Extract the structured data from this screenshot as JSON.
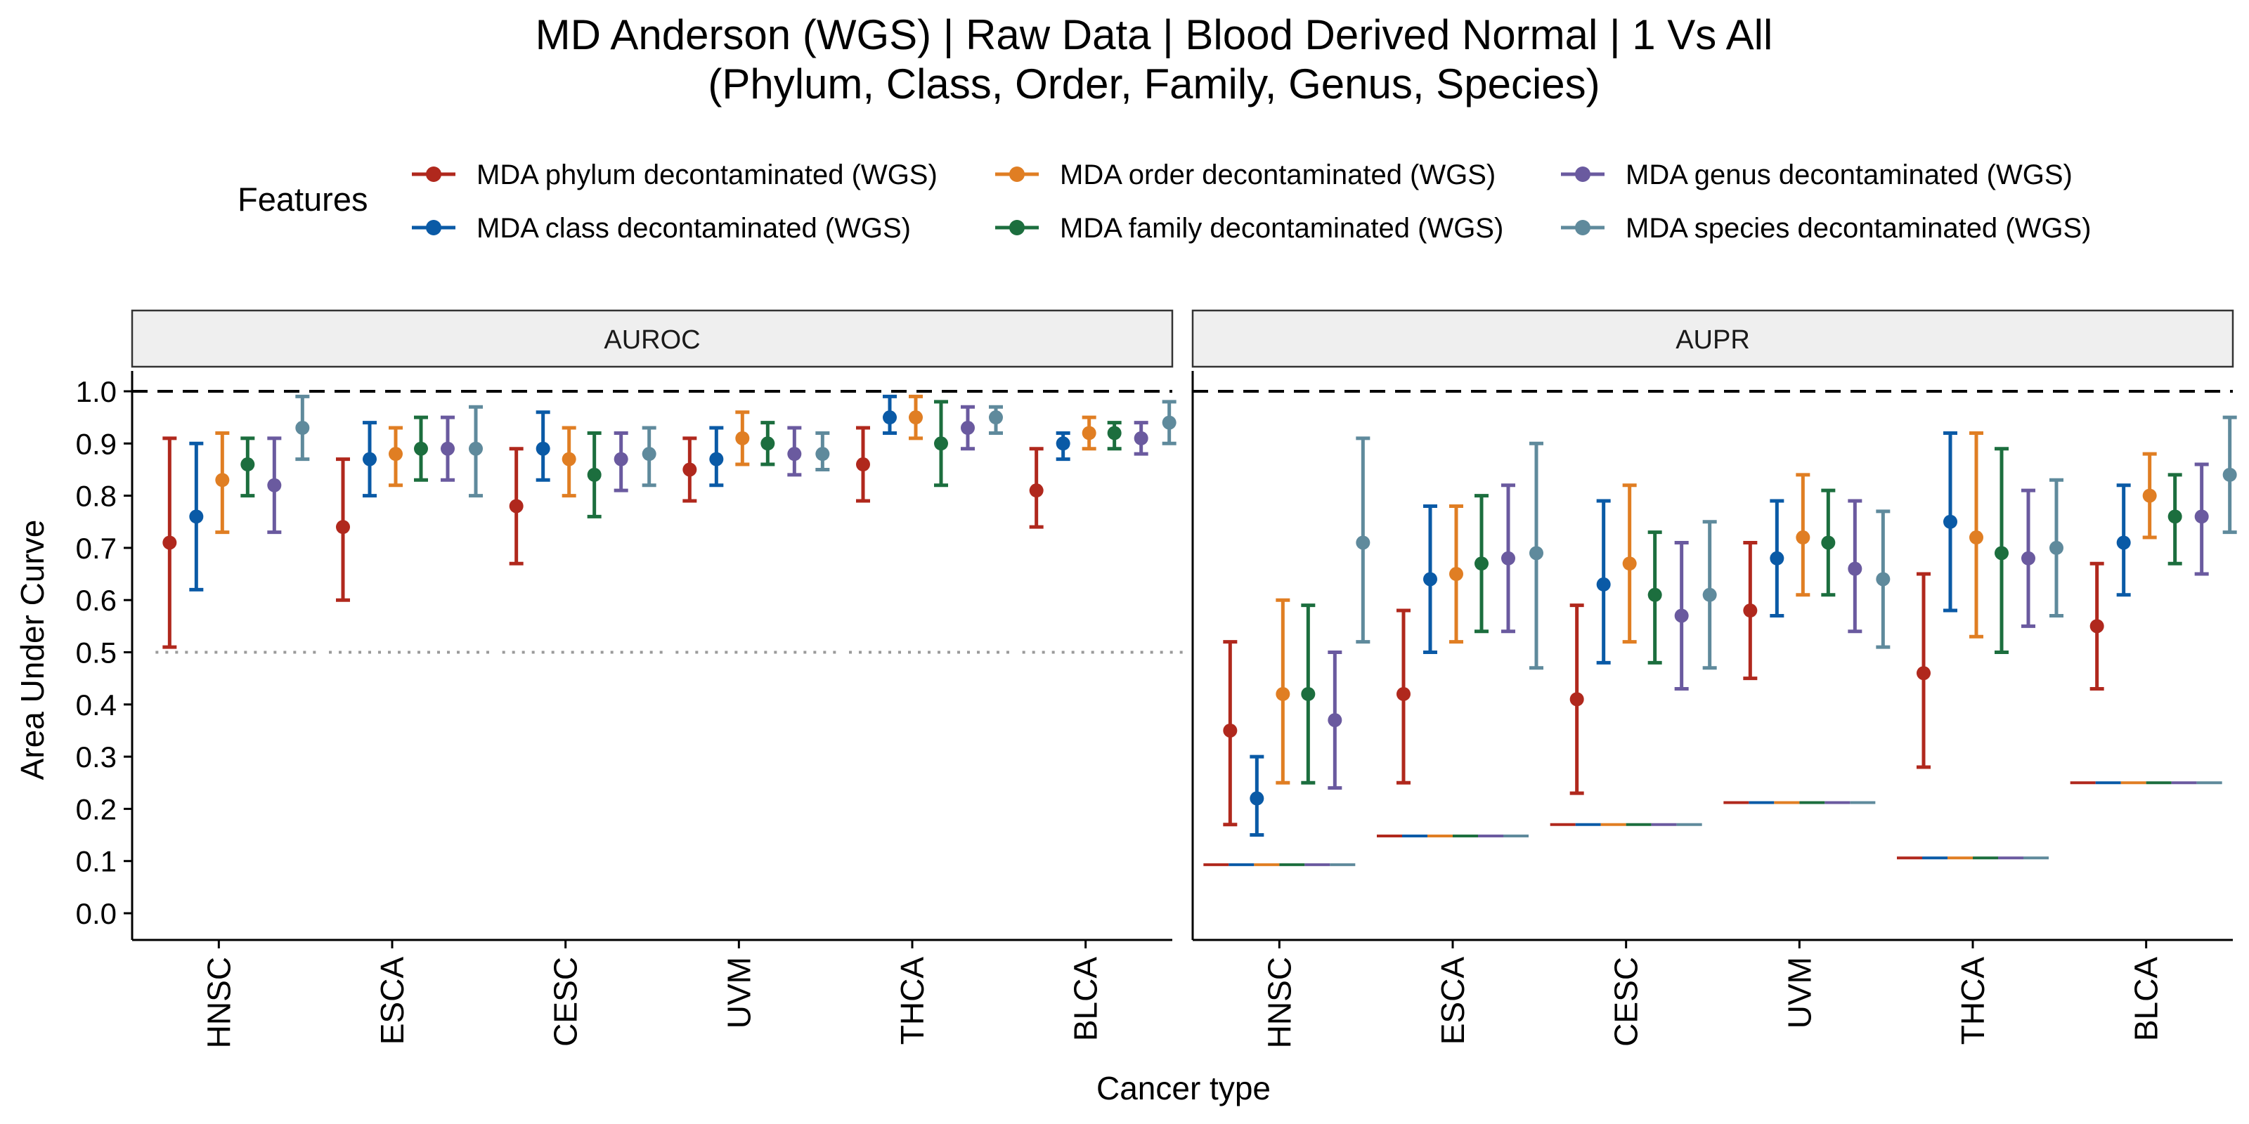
{
  "chart_data": {
    "type": "errorbar",
    "title_line1": "MD Anderson (WGS) | Raw Data | Blood Derived Normal | 1 Vs All",
    "title_line2": "(Phylum, Class, Order, Family, Genus, Species)",
    "legend_title": "Features",
    "legend_position": "top",
    "xlabel": "Cancer type",
    "ylabel": "Area Under Curve",
    "ylim": [
      0,
      1
    ],
    "yticks": [
      "0.0",
      "0.1",
      "0.2",
      "0.3",
      "0.4",
      "0.5",
      "0.6",
      "0.7",
      "0.8",
      "0.9",
      "1.0"
    ],
    "categories": [
      "HNSC",
      "ESCA",
      "CESC",
      "UVM",
      "THCA",
      "BLCA"
    ],
    "reference_line": 1.0,
    "series": [
      {
        "name": "MDA phylum decontaminated (WGS)",
        "color": "#B0281D"
      },
      {
        "name": "MDA class decontaminated (WGS)",
        "color": "#0A5AA6"
      },
      {
        "name": "MDA order decontaminated (WGS)",
        "color": "#E07E23"
      },
      {
        "name": "MDA family decontaminated (WGS)",
        "color": "#1C6E3E"
      },
      {
        "name": "MDA genus decontaminated (WGS)",
        "color": "#6A5A9F"
      },
      {
        "name": "MDA species decontaminated (WGS)",
        "color": "#5F8A9C"
      }
    ],
    "panels": [
      {
        "label": "AUROC",
        "chance_level": [
          0.5,
          0.5,
          0.5,
          0.5,
          0.5,
          0.5
        ],
        "values": [
          [
            [
              0.71,
              0.51,
              0.91
            ],
            [
              0.76,
              0.62,
              0.9
            ],
            [
              0.83,
              0.73,
              0.92
            ],
            [
              0.86,
              0.8,
              0.91
            ],
            [
              0.82,
              0.73,
              0.91
            ],
            [
              0.93,
              0.87,
              0.99
            ]
          ],
          [
            [
              0.74,
              0.6,
              0.87
            ],
            [
              0.87,
              0.8,
              0.94
            ],
            [
              0.88,
              0.82,
              0.93
            ],
            [
              0.89,
              0.83,
              0.95
            ],
            [
              0.89,
              0.83,
              0.95
            ],
            [
              0.89,
              0.8,
              0.97
            ]
          ],
          [
            [
              0.78,
              0.67,
              0.89
            ],
            [
              0.89,
              0.83,
              0.96
            ],
            [
              0.87,
              0.8,
              0.93
            ],
            [
              0.84,
              0.76,
              0.92
            ],
            [
              0.87,
              0.81,
              0.92
            ],
            [
              0.88,
              0.82,
              0.93
            ]
          ],
          [
            [
              0.85,
              0.79,
              0.91
            ],
            [
              0.87,
              0.82,
              0.93
            ],
            [
              0.91,
              0.86,
              0.96
            ],
            [
              0.9,
              0.86,
              0.94
            ],
            [
              0.88,
              0.84,
              0.93
            ],
            [
              0.88,
              0.85,
              0.92
            ]
          ],
          [
            [
              0.86,
              0.79,
              0.93
            ],
            [
              0.95,
              0.92,
              0.99
            ],
            [
              0.95,
              0.91,
              0.99
            ],
            [
              0.9,
              0.82,
              0.98
            ],
            [
              0.93,
              0.89,
              0.97
            ],
            [
              0.95,
              0.92,
              0.97
            ]
          ],
          [
            [
              0.81,
              0.74,
              0.89
            ],
            [
              0.9,
              0.87,
              0.92
            ],
            [
              0.92,
              0.89,
              0.95
            ],
            [
              0.92,
              0.89,
              0.94
            ],
            [
              0.91,
              0.88,
              0.94
            ],
            [
              0.94,
              0.9,
              0.98
            ]
          ]
        ]
      },
      {
        "label": "AUPR",
        "chance_level": [
          0.093,
          0.148,
          0.17,
          0.212,
          0.106,
          0.25
        ],
        "values": [
          [
            [
              0.35,
              0.17,
              0.52
            ],
            [
              0.22,
              0.15,
              0.3
            ],
            [
              0.42,
              0.25,
              0.6
            ],
            [
              0.42,
              0.25,
              0.59
            ],
            [
              0.37,
              0.24,
              0.5
            ],
            [
              0.71,
              0.52,
              0.91
            ]
          ],
          [
            [
              0.42,
              0.25,
              0.58
            ],
            [
              0.64,
              0.5,
              0.78
            ],
            [
              0.65,
              0.52,
              0.78
            ],
            [
              0.67,
              0.54,
              0.8
            ],
            [
              0.68,
              0.54,
              0.82
            ],
            [
              0.69,
              0.47,
              0.9
            ]
          ],
          [
            [
              0.41,
              0.23,
              0.59
            ],
            [
              0.63,
              0.48,
              0.79
            ],
            [
              0.67,
              0.52,
              0.82
            ],
            [
              0.61,
              0.48,
              0.73
            ],
            [
              0.57,
              0.43,
              0.71
            ],
            [
              0.61,
              0.47,
              0.75
            ]
          ],
          [
            [
              0.58,
              0.45,
              0.71
            ],
            [
              0.68,
              0.57,
              0.79
            ],
            [
              0.72,
              0.61,
              0.84
            ],
            [
              0.71,
              0.61,
              0.81
            ],
            [
              0.66,
              0.54,
              0.79
            ],
            [
              0.64,
              0.51,
              0.77
            ]
          ],
          [
            [
              0.46,
              0.28,
              0.65
            ],
            [
              0.75,
              0.58,
              0.92
            ],
            [
              0.72,
              0.53,
              0.92
            ],
            [
              0.69,
              0.5,
              0.89
            ],
            [
              0.68,
              0.55,
              0.81
            ],
            [
              0.7,
              0.57,
              0.83
            ]
          ],
          [
            [
              0.55,
              0.43,
              0.67
            ],
            [
              0.71,
              0.61,
              0.82
            ],
            [
              0.8,
              0.72,
              0.88
            ],
            [
              0.76,
              0.67,
              0.84
            ],
            [
              0.76,
              0.65,
              0.86
            ],
            [
              0.84,
              0.73,
              0.95
            ]
          ]
        ]
      }
    ]
  }
}
